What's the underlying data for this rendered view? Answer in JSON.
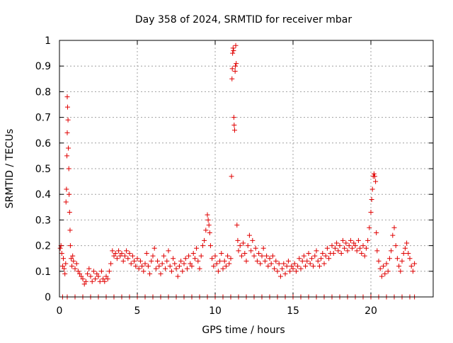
{
  "chart_data": {
    "type": "scatter",
    "title": "Day 358 of 2024, SRMTID for receiver mbar",
    "xlabel": "GPS time / hours",
    "ylabel": "SRMTID / TECUs",
    "xlim": [
      0,
      24
    ],
    "ylim": [
      0,
      1
    ],
    "x_ticks": [
      0,
      5,
      10,
      15,
      20
    ],
    "y_ticks": [
      0,
      0.1,
      0.2,
      0.3,
      0.4,
      0.5,
      0.6,
      0.7,
      0.8,
      0.9,
      1
    ],
    "x_tick_labels": [
      "0",
      "5",
      "10",
      "15",
      "20"
    ],
    "y_tick_labels": [
      "0",
      "0.1",
      "0.2",
      "0.3",
      "0.4",
      "0.5",
      "0.6",
      "0.7",
      "0.8",
      "0.9",
      "1"
    ],
    "grid": true,
    "marker": "+",
    "series": [
      {
        "name": "SRMTID",
        "color": "#e00000",
        "points": [
          [
            0.05,
            0.19
          ],
          [
            0.1,
            0.2
          ],
          [
            0.15,
            0.17
          ],
          [
            0.2,
            0.12
          ],
          [
            0.25,
            0.15
          ],
          [
            0.3,
            0.11
          ],
          [
            0.35,
            0.09
          ],
          [
            0.4,
            0.13
          ],
          [
            0.42,
            0.37
          ],
          [
            0.45,
            0.42
          ],
          [
            0.48,
            0.55
          ],
          [
            0.5,
            0.64
          ],
          [
            0.5,
            0.78
          ],
          [
            0.52,
            0.74
          ],
          [
            0.55,
            0.69
          ],
          [
            0.57,
            0.58
          ],
          [
            0.6,
            0.5
          ],
          [
            0.62,
            0.4
          ],
          [
            0.65,
            0.33
          ],
          [
            0.68,
            0.26
          ],
          [
            0.7,
            0.2
          ],
          [
            0.75,
            0.15
          ],
          [
            0.8,
            0.12
          ],
          [
            0.85,
            0.16
          ],
          [
            0.9,
            0.14
          ],
          [
            1.0,
            0.11
          ],
          [
            1.1,
            0.13
          ],
          [
            1.2,
            0.1
          ],
          [
            1.3,
            0.09
          ],
          [
            1.4,
            0.08
          ],
          [
            1.5,
            0.07
          ],
          [
            1.6,
            0.05
          ],
          [
            1.7,
            0.06
          ],
          [
            1.8,
            0.09
          ],
          [
            1.9,
            0.11
          ],
          [
            2.0,
            0.08
          ],
          [
            2.1,
            0.06
          ],
          [
            2.2,
            0.1
          ],
          [
            2.3,
            0.07
          ],
          [
            2.4,
            0.09
          ],
          [
            2.5,
            0.08
          ],
          [
            2.6,
            0.06
          ],
          [
            2.7,
            0.1
          ],
          [
            2.8,
            0.07
          ],
          [
            2.9,
            0.06
          ],
          [
            3.0,
            0.08
          ],
          [
            3.1,
            0.07
          ],
          [
            3.2,
            0.1
          ],
          [
            3.3,
            0.13
          ],
          [
            3.4,
            0.18
          ],
          [
            3.5,
            0.16
          ],
          [
            3.6,
            0.17
          ],
          [
            3.7,
            0.15
          ],
          [
            3.8,
            0.18
          ],
          [
            3.9,
            0.16
          ],
          [
            4.0,
            0.17
          ],
          [
            4.1,
            0.14
          ],
          [
            4.2,
            0.16
          ],
          [
            4.3,
            0.18
          ],
          [
            4.4,
            0.15
          ],
          [
            4.5,
            0.17
          ],
          [
            4.6,
            0.13
          ],
          [
            4.7,
            0.16
          ],
          [
            4.8,
            0.14
          ],
          [
            4.9,
            0.12
          ],
          [
            5.0,
            0.15
          ],
          [
            5.1,
            0.11
          ],
          [
            5.2,
            0.14
          ],
          [
            5.3,
            0.12
          ],
          [
            5.4,
            0.1
          ],
          [
            5.5,
            0.13
          ],
          [
            5.6,
            0.17
          ],
          [
            5.7,
            0.12
          ],
          [
            5.8,
            0.09
          ],
          [
            5.9,
            0.14
          ],
          [
            6.0,
            0.16
          ],
          [
            6.1,
            0.19
          ],
          [
            6.2,
            0.11
          ],
          [
            6.3,
            0.14
          ],
          [
            6.4,
            0.12
          ],
          [
            6.5,
            0.09
          ],
          [
            6.6,
            0.13
          ],
          [
            6.7,
            0.16
          ],
          [
            6.8,
            0.11
          ],
          [
            6.9,
            0.14
          ],
          [
            7.0,
            0.18
          ],
          [
            7.1,
            0.12
          ],
          [
            7.2,
            0.1
          ],
          [
            7.3,
            0.15
          ],
          [
            7.4,
            0.13
          ],
          [
            7.5,
            0.11
          ],
          [
            7.6,
            0.08
          ],
          [
            7.7,
            0.12
          ],
          [
            7.8,
            0.14
          ],
          [
            7.9,
            0.1
          ],
          [
            8.0,
            0.13
          ],
          [
            8.1,
            0.15
          ],
          [
            8.2,
            0.11
          ],
          [
            8.3,
            0.16
          ],
          [
            8.4,
            0.13
          ],
          [
            8.5,
            0.12
          ],
          [
            8.6,
            0.17
          ],
          [
            8.7,
            0.15
          ],
          [
            8.8,
            0.19
          ],
          [
            8.9,
            0.14
          ],
          [
            9.0,
            0.11
          ],
          [
            9.1,
            0.16
          ],
          [
            9.2,
            0.2
          ],
          [
            9.3,
            0.22
          ],
          [
            9.4,
            0.26
          ],
          [
            9.5,
            0.32
          ],
          [
            9.55,
            0.3
          ],
          [
            9.6,
            0.28
          ],
          [
            9.65,
            0.25
          ],
          [
            9.7,
            0.2
          ],
          [
            9.8,
            0.15
          ],
          [
            9.9,
            0.12
          ],
          [
            10.0,
            0.16
          ],
          [
            10.1,
            0.13
          ],
          [
            10.2,
            0.1
          ],
          [
            10.3,
            0.14
          ],
          [
            10.4,
            0.17
          ],
          [
            10.5,
            0.11
          ],
          [
            10.6,
            0.14
          ],
          [
            10.7,
            0.12
          ],
          [
            10.8,
            0.16
          ],
          [
            10.9,
            0.13
          ],
          [
            11.0,
            0.15
          ],
          [
            11.05,
            0.47
          ],
          [
            11.08,
            0.85
          ],
          [
            11.1,
            0.89
          ],
          [
            11.12,
            0.95
          ],
          [
            11.15,
            0.97
          ],
          [
            11.18,
            0.96
          ],
          [
            11.2,
            0.7
          ],
          [
            11.22,
            0.67
          ],
          [
            11.25,
            0.65
          ],
          [
            11.28,
            0.88
          ],
          [
            11.3,
            0.9
          ],
          [
            11.32,
            0.98
          ],
          [
            11.35,
            0.91
          ],
          [
            11.4,
            0.28
          ],
          [
            11.45,
            0.22
          ],
          [
            11.5,
            0.18
          ],
          [
            11.6,
            0.2
          ],
          [
            11.7,
            0.16
          ],
          [
            11.8,
            0.21
          ],
          [
            11.9,
            0.17
          ],
          [
            12.0,
            0.14
          ],
          [
            12.1,
            0.2
          ],
          [
            12.2,
            0.24
          ],
          [
            12.3,
            0.18
          ],
          [
            12.4,
            0.22
          ],
          [
            12.5,
            0.16
          ],
          [
            12.6,
            0.19
          ],
          [
            12.7,
            0.14
          ],
          [
            12.8,
            0.17
          ],
          [
            12.9,
            0.13
          ],
          [
            13.0,
            0.16
          ],
          [
            13.1,
            0.19
          ],
          [
            13.2,
            0.14
          ],
          [
            13.3,
            0.16
          ],
          [
            13.4,
            0.12
          ],
          [
            13.5,
            0.15
          ],
          [
            13.6,
            0.13
          ],
          [
            13.7,
            0.16
          ],
          [
            13.8,
            0.11
          ],
          [
            13.9,
            0.14
          ],
          [
            14.0,
            0.1
          ],
          [
            14.1,
            0.13
          ],
          [
            14.2,
            0.08
          ],
          [
            14.3,
            0.11
          ],
          [
            14.4,
            0.13
          ],
          [
            14.5,
            0.09
          ],
          [
            14.6,
            0.12
          ],
          [
            14.7,
            0.14
          ],
          [
            14.8,
            0.1
          ],
          [
            14.9,
            0.12
          ],
          [
            15.0,
            0.11
          ],
          [
            15.1,
            0.13
          ],
          [
            15.2,
            0.1
          ],
          [
            15.3,
            0.12
          ],
          [
            15.4,
            0.15
          ],
          [
            15.5,
            0.11
          ],
          [
            15.6,
            0.14
          ],
          [
            15.7,
            0.16
          ],
          [
            15.8,
            0.12
          ],
          [
            15.9,
            0.14
          ],
          [
            16.0,
            0.17
          ],
          [
            16.1,
            0.13
          ],
          [
            16.2,
            0.15
          ],
          [
            16.3,
            0.12
          ],
          [
            16.4,
            0.16
          ],
          [
            16.5,
            0.18
          ],
          [
            16.6,
            0.14
          ],
          [
            16.7,
            0.12
          ],
          [
            16.8,
            0.15
          ],
          [
            16.9,
            0.17
          ],
          [
            17.0,
            0.13
          ],
          [
            17.1,
            0.16
          ],
          [
            17.2,
            0.19
          ],
          [
            17.3,
            0.15
          ],
          [
            17.4,
            0.17
          ],
          [
            17.5,
            0.2
          ],
          [
            17.6,
            0.17
          ],
          [
            17.7,
            0.19
          ],
          [
            17.8,
            0.21
          ],
          [
            17.9,
            0.18
          ],
          [
            18.0,
            0.2
          ],
          [
            18.1,
            0.17
          ],
          [
            18.2,
            0.22
          ],
          [
            18.3,
            0.19
          ],
          [
            18.4,
            0.21
          ],
          [
            18.5,
            0.18
          ],
          [
            18.6,
            0.2
          ],
          [
            18.7,
            0.22
          ],
          [
            18.8,
            0.19
          ],
          [
            18.9,
            0.21
          ],
          [
            19.0,
            0.2
          ],
          [
            19.1,
            0.18
          ],
          [
            19.2,
            0.22
          ],
          [
            19.3,
            0.19
          ],
          [
            19.4,
            0.17
          ],
          [
            19.5,
            0.2
          ],
          [
            19.6,
            0.16
          ],
          [
            19.7,
            0.19
          ],
          [
            19.8,
            0.22
          ],
          [
            19.9,
            0.27
          ],
          [
            20.0,
            0.33
          ],
          [
            20.05,
            0.38
          ],
          [
            20.1,
            0.42
          ],
          [
            20.15,
            0.47
          ],
          [
            20.2,
            0.48
          ],
          [
            20.25,
            0.47
          ],
          [
            20.3,
            0.45
          ],
          [
            20.35,
            0.25
          ],
          [
            20.4,
            0.18
          ],
          [
            20.5,
            0.14
          ],
          [
            20.6,
            0.11
          ],
          [
            20.7,
            0.08
          ],
          [
            20.8,
            0.12
          ],
          [
            20.9,
            0.09
          ],
          [
            21.0,
            0.13
          ],
          [
            21.1,
            0.1
          ],
          [
            21.2,
            0.15
          ],
          [
            21.3,
            0.18
          ],
          [
            21.4,
            0.24
          ],
          [
            21.5,
            0.27
          ],
          [
            21.6,
            0.2
          ],
          [
            21.7,
            0.15
          ],
          [
            21.8,
            0.12
          ],
          [
            21.9,
            0.1
          ],
          [
            22.0,
            0.14
          ],
          [
            22.1,
            0.17
          ],
          [
            22.2,
            0.19
          ],
          [
            22.3,
            0.21
          ],
          [
            22.4,
            0.17
          ],
          [
            22.5,
            0.15
          ],
          [
            22.6,
            0.12
          ],
          [
            22.7,
            0.1
          ],
          [
            22.8,
            0.13
          ]
        ],
        "zero_points_x": [
          0.2,
          0.5,
          1.0,
          1.5,
          2.0,
          2.5,
          3.0,
          3.5,
          4.0,
          4.5,
          5.0,
          5.5,
          6.0,
          6.5,
          7.0,
          7.5,
          8.0,
          8.5,
          9.0,
          9.5,
          10.0,
          10.5,
          11.0,
          11.5,
          12.0,
          12.5,
          13.0,
          13.5,
          14.0,
          14.5,
          15.0,
          15.5,
          16.0,
          16.5,
          17.0,
          17.5,
          18.0,
          18.5,
          19.0,
          19.5,
          20.0,
          20.5,
          21.0,
          21.5,
          22.0,
          22.5,
          22.8
        ]
      }
    ]
  }
}
